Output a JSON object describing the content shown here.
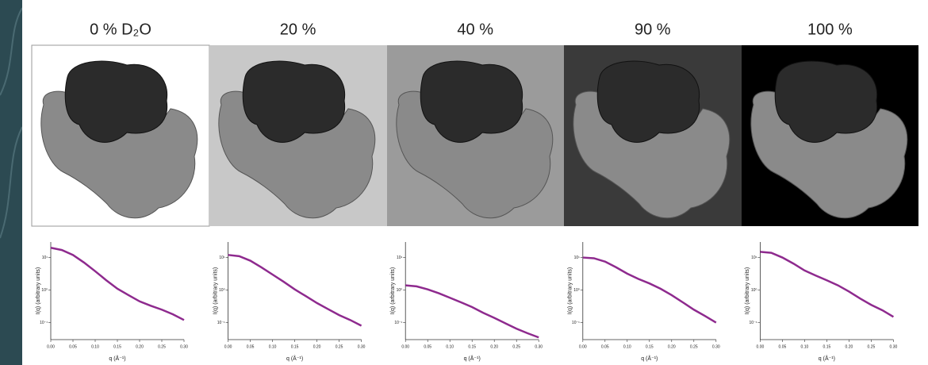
{
  "chart_data": [
    {
      "type": "line",
      "title": "0 % D₂O",
      "y_label": "I(q) (arbitrary units)",
      "x_label": "q (Å⁻¹)",
      "color": "#8e2a8e",
      "log_y": true,
      "x": [
        0,
        0.025,
        0.05,
        0.075,
        0.1,
        0.125,
        0.15,
        0.175,
        0.2,
        0.225,
        0.25,
        0.275,
        0.3
      ],
      "values": [
        20,
        17,
        12,
        7,
        3.8,
        2,
        1.1,
        0.7,
        0.45,
        0.33,
        0.25,
        0.18,
        0.12
      ],
      "xlim": [
        0,
        0.3
      ],
      "ylim": [
        0.03,
        30
      ],
      "xticks": [
        {
          "value": 0,
          "label": "0.00"
        },
        {
          "value": 0.05,
          "label": "0.05"
        },
        {
          "value": 0.1,
          "label": "0.10"
        },
        {
          "value": 0.15,
          "label": "0.15"
        },
        {
          "value": 0.2,
          "label": "0.20"
        },
        {
          "value": 0.25,
          "label": "0.25"
        },
        {
          "value": 0.3,
          "label": "0.30"
        }
      ],
      "yticks": [
        {
          "value": 10,
          "label": "10¹"
        },
        {
          "value": 1,
          "label": "10⁰"
        },
        {
          "value": 0.1,
          "label": "10⁻¹"
        }
      ]
    },
    {
      "type": "line",
      "title": "20 %",
      "y_label": "I(q) (arbitrary units)",
      "x_label": "q (Å⁻¹)",
      "color": "#8e2a8e",
      "log_y": true,
      "x": [
        0,
        0.025,
        0.05,
        0.075,
        0.1,
        0.125,
        0.15,
        0.175,
        0.2,
        0.225,
        0.25,
        0.275,
        0.3
      ],
      "values": [
        12,
        11,
        8,
        5,
        3,
        1.8,
        1.05,
        0.65,
        0.4,
        0.26,
        0.17,
        0.12,
        0.08
      ],
      "xlim": [
        0,
        0.3
      ],
      "ylim": [
        0.03,
        30
      ],
      "xticks": [
        {
          "value": 0,
          "label": "0.00"
        },
        {
          "value": 0.05,
          "label": "0.05"
        },
        {
          "value": 0.1,
          "label": "0.10"
        },
        {
          "value": 0.15,
          "label": "0.15"
        },
        {
          "value": 0.2,
          "label": "0.20"
        },
        {
          "value": 0.25,
          "label": "0.25"
        },
        {
          "value": 0.3,
          "label": "0.30"
        }
      ],
      "yticks": [
        {
          "value": 10,
          "label": "10¹"
        },
        {
          "value": 1,
          "label": "10⁰"
        },
        {
          "value": 0.1,
          "label": "10⁻¹"
        }
      ]
    },
    {
      "type": "line",
      "title": "40 %",
      "y_label": "I(q) (arbitrary units)",
      "x_label": "q (Å⁻¹)",
      "color": "#8e2a8e",
      "log_y": true,
      "x": [
        0,
        0.025,
        0.05,
        0.075,
        0.1,
        0.125,
        0.15,
        0.175,
        0.2,
        0.225,
        0.25,
        0.275,
        0.3
      ],
      "values": [
        1.4,
        1.3,
        1.05,
        0.8,
        0.58,
        0.42,
        0.3,
        0.2,
        0.14,
        0.095,
        0.065,
        0.047,
        0.035
      ],
      "xlim": [
        0,
        0.3
      ],
      "ylim": [
        0.03,
        30
      ],
      "xticks": [
        {
          "value": 0,
          "label": "0.00"
        },
        {
          "value": 0.05,
          "label": "0.05"
        },
        {
          "value": 0.1,
          "label": "0.10"
        },
        {
          "value": 0.15,
          "label": "0.15"
        },
        {
          "value": 0.2,
          "label": "0.20"
        },
        {
          "value": 0.25,
          "label": "0.25"
        },
        {
          "value": 0.3,
          "label": "0.30"
        }
      ],
      "yticks": [
        {
          "value": 10,
          "label": "10¹"
        },
        {
          "value": 1,
          "label": "10⁰"
        },
        {
          "value": 0.1,
          "label": "10⁻¹"
        }
      ]
    },
    {
      "type": "line",
      "title": "90 %",
      "y_label": "I(q) (arbitrary units)",
      "x_label": "q (Å⁻¹)",
      "color": "#8e2a8e",
      "log_y": true,
      "x": [
        0,
        0.025,
        0.05,
        0.075,
        0.1,
        0.125,
        0.15,
        0.175,
        0.2,
        0.225,
        0.25,
        0.275,
        0.3
      ],
      "values": [
        10,
        9.5,
        7.5,
        5,
        3.2,
        2.2,
        1.6,
        1.1,
        0.7,
        0.42,
        0.25,
        0.16,
        0.1
      ],
      "xlim": [
        0,
        0.3
      ],
      "ylim": [
        0.03,
        30
      ],
      "xticks": [
        {
          "value": 0,
          "label": "0.00"
        },
        {
          "value": 0.05,
          "label": "0.05"
        },
        {
          "value": 0.1,
          "label": "0.10"
        },
        {
          "value": 0.15,
          "label": "0.15"
        },
        {
          "value": 0.2,
          "label": "0.20"
        },
        {
          "value": 0.25,
          "label": "0.25"
        },
        {
          "value": 0.3,
          "label": "0.30"
        }
      ],
      "yticks": [
        {
          "value": 10,
          "label": "10¹"
        },
        {
          "value": 1,
          "label": "10⁰"
        },
        {
          "value": 0.1,
          "label": "10⁻¹"
        }
      ]
    },
    {
      "type": "line",
      "title": "100 %",
      "y_label": "I(q) (arbitrary units)",
      "x_label": "q (Å⁻¹)",
      "color": "#8e2a8e",
      "log_y": true,
      "x": [
        0,
        0.025,
        0.05,
        0.075,
        0.1,
        0.125,
        0.15,
        0.175,
        0.2,
        0.225,
        0.25,
        0.275,
        0.3
      ],
      "values": [
        15,
        14,
        10,
        6.5,
        4,
        2.8,
        2,
        1.4,
        0.9,
        0.55,
        0.35,
        0.24,
        0.15
      ],
      "xlim": [
        0,
        0.3
      ],
      "ylim": [
        0.03,
        30
      ],
      "xticks": [
        {
          "value": 0,
          "label": "0.00"
        },
        {
          "value": 0.05,
          "label": "0.05"
        },
        {
          "value": 0.1,
          "label": "0.10"
        },
        {
          "value": 0.15,
          "label": "0.15"
        },
        {
          "value": 0.2,
          "label": "0.20"
        },
        {
          "value": 0.25,
          "label": "0.25"
        },
        {
          "value": 0.3,
          "label": "0.30"
        }
      ],
      "yticks": [
        {
          "value": 10,
          "label": "10¹"
        },
        {
          "value": 1,
          "label": "10⁰"
        },
        {
          "value": 0.1,
          "label": "10⁻¹"
        }
      ]
    }
  ]
}
